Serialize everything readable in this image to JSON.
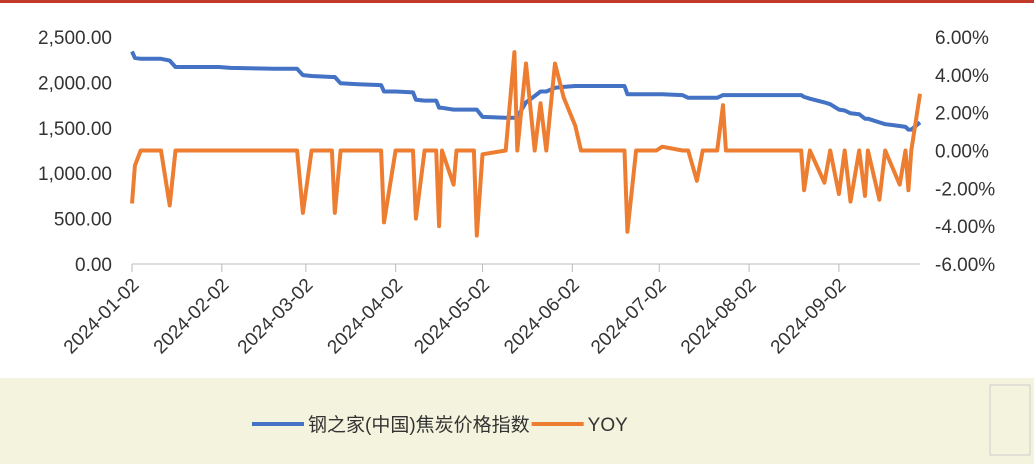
{
  "chart_data": {
    "type": "line",
    "x": [
      "2024-01-02",
      "2024-01-03",
      "2024-01-05",
      "2024-01-12",
      "2024-01-15",
      "2024-01-17",
      "2024-01-24",
      "2024-02-01",
      "2024-02-05",
      "2024-02-20",
      "2024-02-28",
      "2024-03-01",
      "2024-03-04",
      "2024-03-11",
      "2024-03-12",
      "2024-03-14",
      "2024-03-20",
      "2024-03-28",
      "2024-03-29",
      "2024-04-02",
      "2024-04-08",
      "2024-04-09",
      "2024-04-12",
      "2024-04-16",
      "2024-04-17",
      "2024-04-18",
      "2024-04-22",
      "2024-04-23",
      "2024-04-29",
      "2024-04-30",
      "2024-05-02",
      "2024-05-10",
      "2024-05-13",
      "2024-05-14",
      "2024-05-17",
      "2024-05-20",
      "2024-05-22",
      "2024-05-24",
      "2024-05-27",
      "2024-05-30",
      "2024-06-03",
      "2024-06-05",
      "2024-06-20",
      "2024-06-21",
      "2024-06-24",
      "2024-07-01",
      "2024-07-03",
      "2024-07-10",
      "2024-07-12",
      "2024-07-15",
      "2024-07-17",
      "2024-07-22",
      "2024-07-24",
      "2024-07-25",
      "2024-08-02",
      "2024-08-14",
      "2024-08-20",
      "2024-08-21",
      "2024-08-23",
      "2024-08-28",
      "2024-08-30",
      "2024-09-02",
      "2024-09-04",
      "2024-09-06",
      "2024-09-09",
      "2024-09-11",
      "2024-09-12",
      "2024-09-16",
      "2024-09-18",
      "2024-09-23",
      "2024-09-25",
      "2024-09-26",
      "2024-09-27",
      "2024-09-30"
    ],
    "series": [
      {
        "name": "钢之家(中国)焦炭价格指数",
        "color": "#4472c4",
        "axis": "y",
        "values": [
          2340,
          2270,
          2260,
          2260,
          2240,
          2170,
          2170,
          2170,
          2160,
          2150,
          2150,
          2080,
          2070,
          2060,
          2060,
          1990,
          1980,
          1970,
          1900,
          1900,
          1890,
          1810,
          1800,
          1800,
          1720,
          1720,
          1700,
          1700,
          1700,
          1700,
          1620,
          1610,
          1610,
          1620,
          1780,
          1850,
          1900,
          1900,
          1940,
          1950,
          1960,
          1960,
          1960,
          1870,
          1870,
          1870,
          1870,
          1860,
          1830,
          1830,
          1830,
          1830,
          1860,
          1860,
          1860,
          1860,
          1860,
          1840,
          1820,
          1780,
          1760,
          1700,
          1690,
          1660,
          1650,
          1600,
          1600,
          1560,
          1540,
          1520,
          1510,
          1480,
          1480,
          1560
        ]
      },
      {
        "name": "YOY",
        "color": "#ed7d31",
        "axis": "y2",
        "values": [
          -2.8,
          -0.8,
          0,
          0,
          -2.9,
          0,
          0,
          0,
          0,
          0,
          0,
          -3.3,
          0,
          0,
          -3.3,
          0,
          0,
          0,
          -3.8,
          0,
          0,
          -3.6,
          0,
          0,
          -4.0,
          0,
          -1.8,
          0,
          0,
          -4.5,
          -0.2,
          0,
          5.2,
          0,
          4.6,
          0,
          2.5,
          0,
          4.6,
          2.8,
          1.3,
          0,
          0,
          -4.3,
          0,
          0,
          0.2,
          0,
          0,
          -1.6,
          0,
          0,
          2.4,
          0,
          0,
          0,
          0,
          -2.1,
          0,
          -1.7,
          0,
          -2.3,
          0,
          -2.7,
          0,
          -2.4,
          0,
          -2.6,
          0,
          -1.8,
          0,
          -2.1,
          0,
          3.0
        ]
      }
    ],
    "xlim": [
      "2024-01-02",
      "2024-09-30"
    ],
    "xticks": [
      "2024-01-02",
      "2024-02-02",
      "2024-03-02",
      "2024-04-02",
      "2024-05-02",
      "2024-06-02",
      "2024-07-02",
      "2024-08-02",
      "2024-09-02"
    ],
    "ylim": [
      0,
      2500
    ],
    "yticks": [
      {
        "value": 0,
        "label": "0.00"
      },
      {
        "value": 500,
        "label": "500.00"
      },
      {
        "value": 1000,
        "label": "1,000.00"
      },
      {
        "value": 1500,
        "label": "1,500.00"
      },
      {
        "value": 2000,
        "label": "2,000.00"
      },
      {
        "value": 2500,
        "label": "2,500.00"
      }
    ],
    "y2lim": [
      -6,
      6
    ],
    "y2ticks": [
      {
        "value": -6,
        "label": "-6.00%"
      },
      {
        "value": -4,
        "label": "-4.00%"
      },
      {
        "value": -2,
        "label": "-2.00%"
      },
      {
        "value": 0,
        "label": "0.00%"
      },
      {
        "value": 2,
        "label": "2.00%"
      },
      {
        "value": 4,
        "label": "4.00%"
      },
      {
        "value": 6,
        "label": "6.00%"
      }
    ],
    "legend": "bottom"
  }
}
